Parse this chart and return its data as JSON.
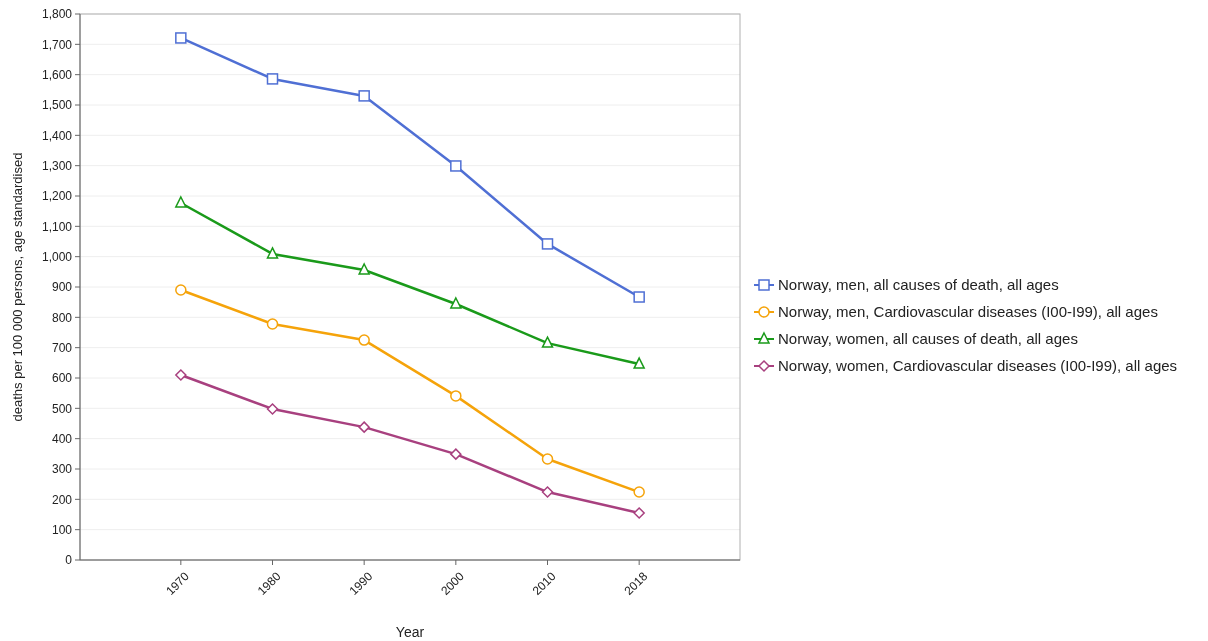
{
  "chart_data": {
    "type": "line",
    "xlabel": "Year",
    "ylabel": "deaths per 100 000 persons, age standardised",
    "categories": [
      "1970",
      "1980",
      "1990",
      "2000",
      "2010",
      "2018"
    ],
    "ylim": [
      0,
      1800
    ],
    "yticks": [
      {
        "value": 0,
        "label": "0"
      },
      {
        "value": 100,
        "label": "100"
      },
      {
        "value": 200,
        "label": "200"
      },
      {
        "value": 300,
        "label": "300"
      },
      {
        "value": 400,
        "label": "400"
      },
      {
        "value": 500,
        "label": "500"
      },
      {
        "value": 600,
        "label": "600"
      },
      {
        "value": 700,
        "label": "700"
      },
      {
        "value": 800,
        "label": "800"
      },
      {
        "value": 900,
        "label": "900"
      },
      {
        "value": 1000,
        "label": "1,000"
      },
      {
        "value": 1100,
        "label": "1,100"
      },
      {
        "value": 1200,
        "label": "1,200"
      },
      {
        "value": 1300,
        "label": "1,300"
      },
      {
        "value": 1400,
        "label": "1,400"
      },
      {
        "value": 1500,
        "label": "1,500"
      },
      {
        "value": 1600,
        "label": "1,600"
      },
      {
        "value": 1700,
        "label": "1,700"
      },
      {
        "value": 1800,
        "label": "1,800"
      }
    ],
    "grid": "y",
    "legend": "right",
    "line_style": "solid",
    "series": [
      {
        "name": "Norway, men, all causes of death, all ages",
        "color": "#4f6fd4",
        "marker": "square",
        "values": [
          1721,
          1586,
          1530,
          1299,
          1042,
          867
        ]
      },
      {
        "name": "Norway, men, Cardiovascular diseases (I00-I99), all ages",
        "color": "#f5a30a",
        "marker": "circle",
        "values": [
          890,
          778,
          725,
          541,
          333,
          224
        ]
      },
      {
        "name": "Norway, women, all causes of death, all ages",
        "color": "#1a9a1a",
        "marker": "triangle",
        "values": [
          1177,
          1009,
          956,
          844,
          715,
          646
        ]
      },
      {
        "name": "Norway, women, Cardiovascular diseases (I00-I99), all ages",
        "color": "#a8407f",
        "marker": "diamond",
        "values": [
          610,
          498,
          438,
          349,
          224,
          155
        ]
      }
    ]
  }
}
